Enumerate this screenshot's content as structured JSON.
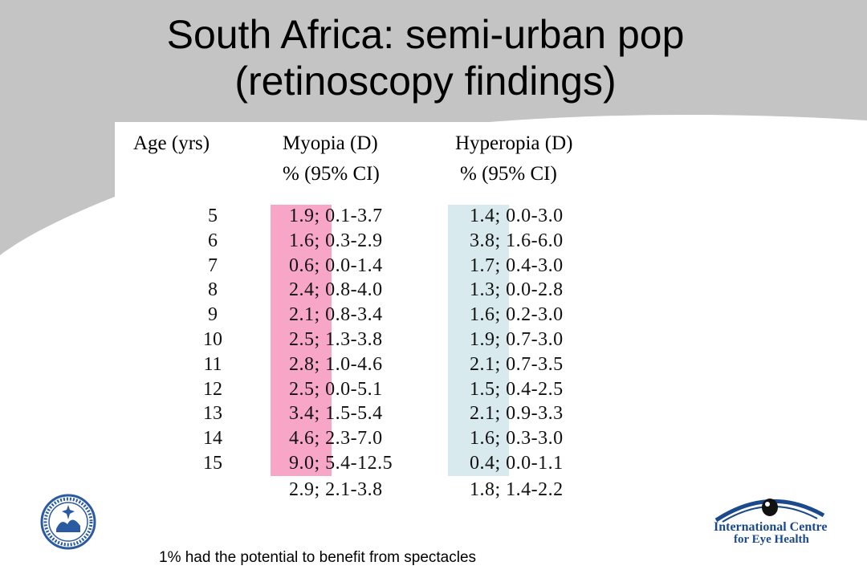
{
  "slide": {
    "title_line1": "South Africa: semi-urban pop",
    "title_line2": "(retinoscopy findings)",
    "footnote": "1% had the potential to benefit from spectacles"
  },
  "table": {
    "headers": {
      "age": "Age (yrs)",
      "myopia": "Myopia (D)",
      "myopia_sub": "%  (95% CI)",
      "hyperopia": "Hyperopia (D)",
      "hyperopia_sub": "% (95% CI)"
    },
    "rows": [
      {
        "age": "5",
        "myopia": "1.9; 0.1-3.7",
        "hyperopia": "1.4; 0.0-3.0"
      },
      {
        "age": "6",
        "myopia": "1.6; 0.3-2.9",
        "hyperopia": "3.8; 1.6-6.0"
      },
      {
        "age": "7",
        "myopia": "0.6; 0.0-1.4",
        "hyperopia": "1.7; 0.4-3.0"
      },
      {
        "age": "8",
        "myopia": "2.4; 0.8-4.0",
        "hyperopia": "1.3; 0.0-2.8"
      },
      {
        "age": "9",
        "myopia": "2.1; 0.8-3.4",
        "hyperopia": "1.6; 0.2-3.0"
      },
      {
        "age": "10",
        "myopia": "2.5; 1.3-3.8",
        "hyperopia": "1.9; 0.7-3.0"
      },
      {
        "age": "11",
        "myopia": "2.8; 1.0-4.6",
        "hyperopia": "2.1; 0.7-3.5"
      },
      {
        "age": "12",
        "myopia": "2.5; 0.0-5.1",
        "hyperopia": "1.5; 0.4-2.5"
      },
      {
        "age": "13",
        "myopia": "3.4; 1.5-5.4",
        "hyperopia": "2.1; 0.9-3.3"
      },
      {
        "age": "14",
        "myopia": "4.6; 2.3-7.0",
        "hyperopia": "1.6; 0.3-3.0"
      },
      {
        "age": "15",
        "myopia": "9.0; 5.4-12.5",
        "hyperopia": "0.4; 0.0-1.1"
      }
    ],
    "total": {
      "myopia": "2.9; 2.1-3.8",
      "hyperopia": "1.8; 1.4-2.2"
    }
  },
  "logos": {
    "left": "London School of Hygiene & Tropical Medicine",
    "right_line1": "International Centre",
    "right_line2": "for Eye Health"
  },
  "colors": {
    "background_swoosh": "#c4c4c4",
    "myopia_band": "#f7a6c8",
    "hyperopia_band": "#d8eaed",
    "logo_blue": "#1b4a8c"
  }
}
